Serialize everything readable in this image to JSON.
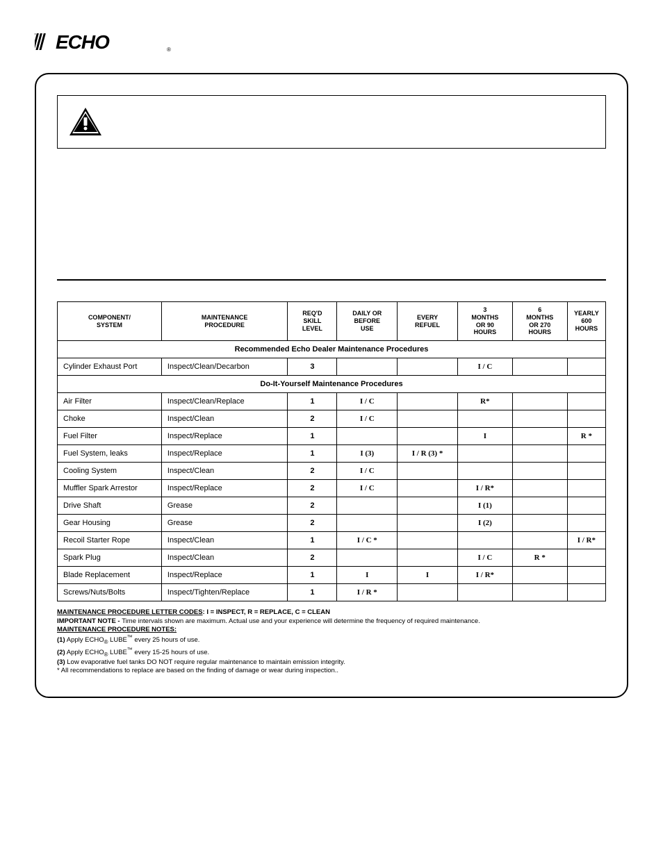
{
  "brand": "ECHO",
  "columns": {
    "component": "COMPONENT/\nSYSTEM",
    "procedure": "MAINTENANCE\nPROCEDURE",
    "skill": "REQ'D\nSKILL\nLEVEL",
    "daily": "DAILY OR\nBEFORE\nUSE",
    "refuel": "EVERY\nREFUEL",
    "mo3": "3\nMONTHS\nOR 90\nHOURS",
    "mo6": "6\nMONTHS\nOR 270\nHOURS",
    "yearly": "YEARLY\n600\nHOURS"
  },
  "section_dealer": "Recommended Echo Dealer Maintenance Procedures",
  "section_diy": "Do-It-Yourself Maintenance Procedures",
  "rows_dealer": [
    {
      "comp": "Cylinder Exhaust Port",
      "proc": "Inspect/Clean/Decarbon",
      "skill": "3",
      "daily": "",
      "refuel": "",
      "mo3": "I / C",
      "mo6": "",
      "yearly": ""
    }
  ],
  "rows_diy": [
    {
      "comp": "Air Filter",
      "proc": "Inspect/Clean/Replace",
      "skill": "1",
      "daily": "I / C",
      "refuel": "",
      "mo3": "R*",
      "mo6": "",
      "yearly": ""
    },
    {
      "comp": "Choke",
      "proc": "Inspect/Clean",
      "skill": "2",
      "daily": "I / C",
      "refuel": "",
      "mo3": "",
      "mo6": "",
      "yearly": ""
    },
    {
      "comp": "Fuel Filter",
      "proc": "Inspect/Replace",
      "skill": "1",
      "daily": "",
      "refuel": "",
      "mo3": "I",
      "mo6": "",
      "yearly": "R *"
    },
    {
      "comp": "Fuel System, leaks",
      "proc": "Inspect/Replace",
      "skill": "1",
      "daily": "I (3)",
      "refuel": "I / R (3) *",
      "mo3": "",
      "mo6": "",
      "yearly": ""
    },
    {
      "comp": "Cooling System",
      "proc": "Inspect/Clean",
      "skill": "2",
      "daily": "I / C",
      "refuel": "",
      "mo3": "",
      "mo6": "",
      "yearly": ""
    },
    {
      "comp": "Muffler Spark Arrestor",
      "proc": "Inspect/Replace",
      "skill": "2",
      "daily": "I / C",
      "refuel": "",
      "mo3": "I / R*",
      "mo6": "",
      "yearly": ""
    },
    {
      "comp": "Drive Shaft",
      "proc": "Grease",
      "skill": "2",
      "daily": "",
      "refuel": "",
      "mo3": "I (1)",
      "mo6": "",
      "yearly": ""
    },
    {
      "comp": "Gear Housing",
      "proc": "Grease",
      "skill": "2",
      "daily": "",
      "refuel": "",
      "mo3": "I (2)",
      "mo6": "",
      "yearly": ""
    },
    {
      "comp": "Recoil Starter Rope",
      "proc": "Inspect/Clean",
      "skill": "1",
      "daily": "I / C *",
      "refuel": "",
      "mo3": "",
      "mo6": "",
      "yearly": "I / R*"
    },
    {
      "comp": "Spark Plug",
      "proc": "Inspect/Clean",
      "skill": "2",
      "daily": "",
      "refuel": "",
      "mo3": "I / C",
      "mo6": "R *",
      "yearly": ""
    },
    {
      "comp": "Blade Replacement",
      "proc": "Inspect/Replace",
      "skill": "1",
      "daily": "I",
      "refuel": "I",
      "mo3": "I / R*",
      "mo6": "",
      "yearly": ""
    },
    {
      "comp": "Screws/Nuts/Bolts",
      "proc": "Inspect/Tighten/Replace",
      "skill": "1",
      "daily": "I / R *",
      "refuel": "",
      "mo3": "",
      "mo6": "",
      "yearly": ""
    }
  ],
  "footnotes": {
    "codes_label": "MAINTENANCE PROCEDURE LETTER CODES",
    "codes_text": ":  I = INSPECT,  R = REPLACE,  C = CLEAN",
    "important_label": "IMPORTANT NOTE - ",
    "important_text": "Time intervals shown are maximum. Actual use and your experience will determine the frequency of required maintenance.",
    "notes_label": "MAINTENANCE PROCEDURE NOTES:",
    "n1_label": "(1)",
    "n1_text": " Apply  ECHO",
    "n1_text2": " LUBE",
    "n1_text3": " every 25 hours of use.",
    "n2_label": "(2)",
    "n2_text": " Apply  ECHO",
    "n2_text2": " LUBE",
    "n2_text3": " every 15-25 hours of use.",
    "n3_label": "(3)",
    "n3_text": " Low evaporative fuel tanks DO NOT require regular maintenance to maintain emission integrity.",
    "star_text": "* All recommendations to replace are based on the finding of damage or wear during inspection..",
    "reg": "®",
    "tm": "™"
  }
}
